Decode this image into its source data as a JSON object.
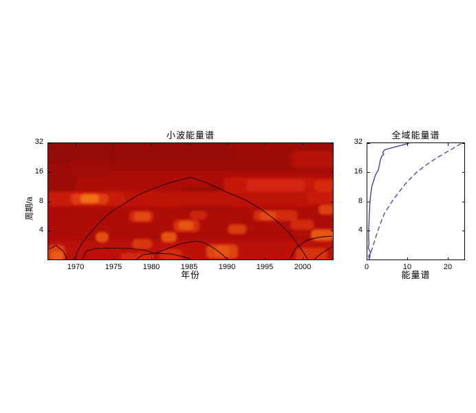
{
  "window": {
    "background": "#ffffff"
  },
  "chart_data": [
    {
      "type": "heatmap",
      "title": "小波能量谱",
      "xlabel": "年份",
      "ylabel": "周期/a",
      "xlim": [
        1966.3,
        2004.1
      ],
      "ylim": [
        2,
        32
      ],
      "y_scale": "log2",
      "x_ticks": [
        1970,
        1975,
        1980,
        1985,
        1990,
        1995,
        2000
      ],
      "y_ticks": [
        4,
        8,
        16,
        32
      ],
      "grid": false,
      "base_color": "#ae0d07",
      "contour_color": "#260402",
      "patches": [
        {
          "x0": 1966.3,
          "x1": 2004.1,
          "p": 24,
          "h": 1.1,
          "c": "#9e0c06"
        },
        {
          "x0": 1966.3,
          "x1": 1975.0,
          "p": 27,
          "h": 0.9,
          "c": "#920b05"
        },
        {
          "x0": 1975.0,
          "x1": 1991.0,
          "p": 25.5,
          "h": 0.7,
          "c": "#970b06"
        },
        {
          "x0": 1966.3,
          "x1": 1970.0,
          "p": 13,
          "h": 0.9,
          "c": "#9c0c06"
        },
        {
          "x0": 1969.0,
          "x1": 1974.5,
          "p": 17.5,
          "h": 0.6,
          "c": "#a00c06"
        },
        {
          "x0": 1984.0,
          "x1": 1990.5,
          "p": 8.9,
          "h": 0.8,
          "c": "#9d0c06"
        },
        {
          "x0": 1991.5,
          "x1": 1998.5,
          "p": 2.35,
          "h": 0.5,
          "c": "#a20d07"
        },
        {
          "x0": 1969.3,
          "x1": 1973.5,
          "p": 2.8,
          "h": 0.5,
          "c": "#a10d07"
        },
        {
          "x0": 1966.3,
          "x1": 2004.1,
          "p": 8.6,
          "h": 0.5,
          "c": "#bc1208"
        },
        {
          "x0": 1966.3,
          "x1": 2004.1,
          "p": 2.5,
          "h": 0.7,
          "c": "#bb1108"
        },
        {
          "x0": 1998.5,
          "x1": 2004.1,
          "p": 21.5,
          "h": 0.6,
          "c": "#b71208"
        },
        {
          "x0": 1966.3,
          "x1": 1976.5,
          "p": 8.6,
          "h": 0.45,
          "c": "#c81c0b"
        },
        {
          "x0": 1969.3,
          "x1": 1974.3,
          "p": 8.6,
          "h": 0.38,
          "c": "#de3c10"
        },
        {
          "x0": 1970.6,
          "x1": 1973.0,
          "p": 8.7,
          "h": 0.3,
          "c": "#ee7116"
        },
        {
          "x0": 1977.0,
          "x1": 1980.2,
          "p": 5.7,
          "h": 0.4,
          "c": "#d1280d"
        },
        {
          "x0": 1977.6,
          "x1": 1979.8,
          "p": 5.7,
          "h": 0.3,
          "c": "#e04a11"
        },
        {
          "x0": 1982.8,
          "x1": 1986.3,
          "p": 4.6,
          "h": 0.42,
          "c": "#d62f0e"
        },
        {
          "x0": 1983.5,
          "x1": 1985.6,
          "p": 4.6,
          "h": 0.3,
          "c": "#e55511"
        },
        {
          "x0": 1972.6,
          "x1": 1974.3,
          "p": 3.5,
          "h": 0.35,
          "c": "#e25110"
        },
        {
          "x0": 1981.2,
          "x1": 1983.3,
          "p": 3.5,
          "h": 0.35,
          "c": "#e35310"
        },
        {
          "x0": 1977.4,
          "x1": 1980.0,
          "p": 3.0,
          "h": 0.35,
          "c": "#d8370d"
        },
        {
          "x0": 1966.3,
          "x1": 1968.6,
          "p": 2.4,
          "h": 0.55,
          "c": "#dd430f"
        },
        {
          "x0": 1966.7,
          "x1": 1968.3,
          "p": 2.2,
          "h": 0.4,
          "c": "#e65d13"
        },
        {
          "x0": 1975.8,
          "x1": 1980.2,
          "p": 2.1,
          "h": 0.4,
          "c": "#d0290c"
        },
        {
          "x0": 1981.0,
          "x1": 1984.0,
          "p": 2.3,
          "h": 0.4,
          "c": "#d32c0c"
        },
        {
          "x0": 1987.2,
          "x1": 1991.4,
          "p": 2.5,
          "h": 0.5,
          "c": "#dc430f"
        },
        {
          "x0": 1988.3,
          "x1": 1990.3,
          "p": 2.5,
          "h": 0.38,
          "c": "#e55512"
        },
        {
          "x0": 1990.0,
          "x1": 1992.6,
          "p": 4.2,
          "h": 0.32,
          "c": "#d83c0e"
        },
        {
          "x0": 1993.4,
          "x1": 1999.3,
          "p": 5.8,
          "h": 0.38,
          "c": "#d22b0e"
        },
        {
          "x0": 1994.2,
          "x1": 1996.5,
          "p": 5.8,
          "h": 0.3,
          "c": "#e04a12"
        },
        {
          "x0": 1985.0,
          "x1": 1987.3,
          "p": 5.9,
          "h": 0.3,
          "c": "#cc240c"
        },
        {
          "x0": 1989.5,
          "x1": 2004.1,
          "p": 11.9,
          "h": 0.5,
          "c": "#c41809"
        },
        {
          "x0": 1992.5,
          "x1": 2000.3,
          "p": 11.8,
          "h": 0.42,
          "c": "#d32511"
        },
        {
          "x0": 2001.5,
          "x1": 2004.1,
          "p": 11.7,
          "h": 0.4,
          "c": "#d62a0e"
        },
        {
          "x0": 2000.5,
          "x1": 2004.1,
          "p": 8.9,
          "h": 0.38,
          "c": "#c71c0b"
        },
        {
          "x0": 2002.0,
          "x1": 2004.1,
          "p": 6.7,
          "h": 0.36,
          "c": "#dc3f10"
        },
        {
          "x0": 1998.3,
          "x1": 2001.5,
          "p": 4.7,
          "h": 0.35,
          "c": "#d0290d"
        },
        {
          "x0": 2001.0,
          "x1": 2004.1,
          "p": 3.7,
          "h": 0.4,
          "c": "#e55713"
        },
        {
          "x0": 1999.0,
          "x1": 2003.2,
          "p": 2.3,
          "h": 0.5,
          "c": "#d6330c"
        }
      ],
      "cone_of_influence": [
        [
          1969.6,
          2.0
        ],
        [
          1970.5,
          2.8
        ],
        [
          1971.5,
          3.55
        ],
        [
          1973.0,
          4.8
        ],
        [
          1974.3,
          6.0
        ],
        [
          1976.3,
          7.56
        ],
        [
          1978.2,
          9.33
        ],
        [
          1980.4,
          11.0
        ],
        [
          1982.5,
          12.5
        ],
        [
          1985.2,
          14.2
        ],
        [
          1987.3,
          12.5
        ],
        [
          1990.0,
          10.0
        ],
        [
          1992.5,
          8.3
        ],
        [
          1994.5,
          6.75
        ],
        [
          1996.6,
          5.1
        ],
        [
          1998.5,
          3.7
        ],
        [
          2000.0,
          2.55
        ],
        [
          2000.9,
          2.0
        ]
      ],
      "contours": [
        [
          [
            1970.7,
            2.0
          ],
          [
            1971.3,
            2.45
          ],
          [
            1972.5,
            2.6
          ],
          [
            1974.5,
            2.62
          ],
          [
            1977.0,
            2.6
          ],
          [
            1979.2,
            2.5
          ],
          [
            1980.3,
            2.3
          ],
          [
            1981.9,
            2.55
          ],
          [
            1983.8,
            2.9
          ],
          [
            1985.8,
            3.1
          ],
          [
            1987.0,
            3.0
          ],
          [
            1988.4,
            2.6
          ],
          [
            1989.6,
            2.2
          ],
          [
            1990.1,
            2.0
          ]
        ],
        [
          [
            1977.9,
            2.0
          ],
          [
            1978.9,
            2.25
          ],
          [
            1980.6,
            2.32
          ],
          [
            1982.7,
            2.28
          ],
          [
            1984.4,
            2.12
          ],
          [
            1985.3,
            2.0
          ]
        ],
        [
          [
            1998.4,
            2.0
          ],
          [
            1999.4,
            2.7
          ],
          [
            2000.7,
            3.15
          ],
          [
            2002.3,
            3.4
          ],
          [
            2004.1,
            3.5
          ]
        ],
        [
          [
            2004.1,
            2.7
          ],
          [
            2002.8,
            2.35
          ],
          [
            2001.7,
            2.0
          ]
        ],
        [
          [
            1966.3,
            2.55
          ],
          [
            1967.2,
            2.8
          ],
          [
            1968.2,
            2.45
          ],
          [
            1968.7,
            2.0
          ]
        ]
      ]
    },
    {
      "type": "line",
      "title": "全域能量谱",
      "xlabel": "能量谱",
      "ylabel": "",
      "xlim": [
        0,
        24.2
      ],
      "ylim": [
        2,
        32
      ],
      "y_scale": "log2",
      "x_ticks": [
        0,
        10,
        20
      ],
      "y_ticks": [
        4,
        8,
        16,
        32
      ],
      "grid": false,
      "series": [
        {
          "style": "solid",
          "color": "#3c3c9c",
          "points_period_value": [
            [
              2,
              0.55
            ],
            [
              2.15,
              0.3
            ],
            [
              2.35,
              0.85
            ],
            [
              2.6,
              0.25
            ],
            [
              2.9,
              0.4
            ],
            [
              3.3,
              0.33
            ],
            [
              4,
              0.3
            ],
            [
              4.6,
              0.4
            ],
            [
              5.5,
              0.46
            ],
            [
              6.5,
              0.55
            ],
            [
              7.5,
              0.62
            ],
            [
              8.5,
              0.72
            ],
            [
              9.5,
              0.85
            ],
            [
              10.5,
              1.0
            ],
            [
              11.5,
              1.15
            ],
            [
              12.5,
              1.42
            ],
            [
              13.5,
              1.7
            ],
            [
              14.5,
              1.9
            ],
            [
              15.5,
              2.2
            ],
            [
              16.5,
              2.6
            ],
            [
              17.5,
              2.85
            ],
            [
              19,
              3.0
            ],
            [
              20.5,
              3.15
            ],
            [
              22,
              3.35
            ],
            [
              23.5,
              3.6
            ],
            [
              24.5,
              4.1
            ],
            [
              25.5,
              3.85
            ],
            [
              26.5,
              4.05
            ],
            [
              27.5,
              4.4
            ],
            [
              32,
              10.4
            ]
          ]
        },
        {
          "style": "dashed",
          "color": "#4b4bb0",
          "points_period_value": [
            [
              2,
              0.45
            ],
            [
              2.5,
              1.1
            ],
            [
              3,
              1.7
            ],
            [
              3.5,
              2.2
            ],
            [
              4,
              2.65
            ],
            [
              5,
              3.5
            ],
            [
              6,
              4.3
            ],
            [
              7,
              5.3
            ],
            [
              8,
              6.2
            ],
            [
              9,
              7.1
            ],
            [
              10,
              7.9
            ],
            [
              12,
              9.4
            ],
            [
              14,
              10.9
            ],
            [
              16,
              12.3
            ],
            [
              19,
              14.6
            ],
            [
              22,
              16.9
            ],
            [
              26,
              19.8
            ],
            [
              29,
              21.8
            ],
            [
              32,
              23.5
            ]
          ]
        }
      ]
    }
  ]
}
